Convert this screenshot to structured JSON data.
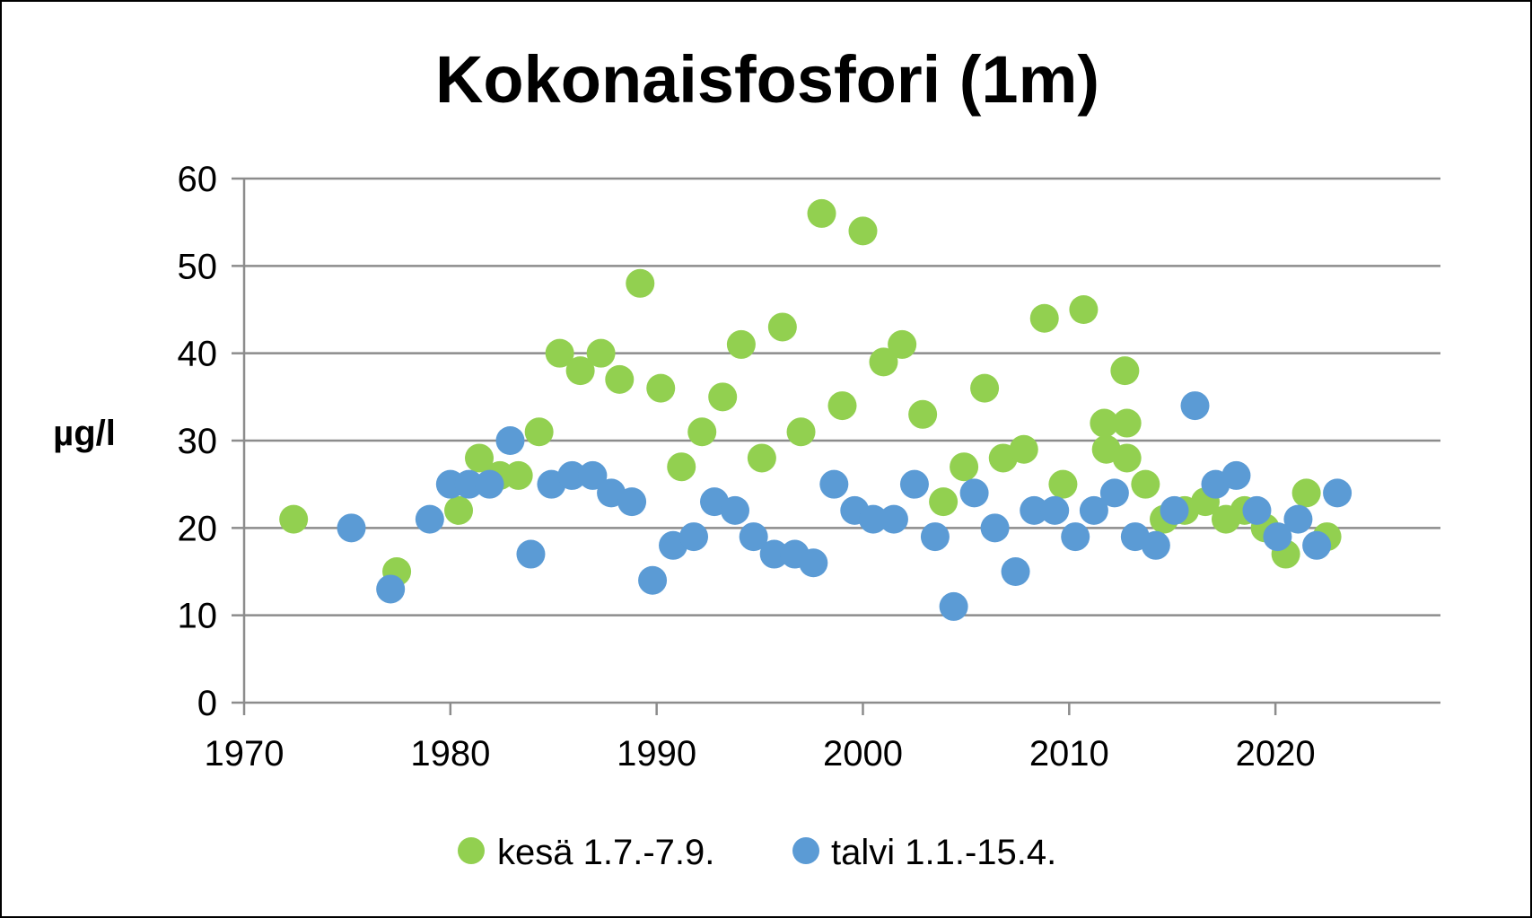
{
  "chart_data": {
    "type": "scatter",
    "title": "Kokonaisfosfori (1m)",
    "xlabel": "",
    "ylabel": "µg/l",
    "xlim": [
      1970,
      2028
    ],
    "ylim": [
      0,
      60
    ],
    "x_ticks": [
      1970,
      1980,
      1990,
      2000,
      2010,
      2020
    ],
    "y_ticks": [
      0,
      10,
      20,
      30,
      40,
      50,
      60
    ],
    "grid": true,
    "legend_position": "bottom",
    "series": [
      {
        "name": "kesä 1.7.-7.9.",
        "color": "#92D050",
        "points": [
          [
            1972.4,
            21
          ],
          [
            1977.4,
            15
          ],
          [
            1980.4,
            22
          ],
          [
            1981.4,
            28
          ],
          [
            1982.4,
            26
          ],
          [
            1983.3,
            26
          ],
          [
            1984.3,
            31
          ],
          [
            1985.3,
            40
          ],
          [
            1986.3,
            38
          ],
          [
            1987.3,
            40
          ],
          [
            1988.2,
            37
          ],
          [
            1989.2,
            48
          ],
          [
            1990.2,
            36
          ],
          [
            1991.2,
            27
          ],
          [
            1992.2,
            31
          ],
          [
            1993.2,
            35
          ],
          [
            1994.1,
            41
          ],
          [
            1995.1,
            28
          ],
          [
            1996.1,
            43
          ],
          [
            1997.0,
            31
          ],
          [
            1998.0,
            56
          ],
          [
            1999.0,
            34
          ],
          [
            2000.0,
            54
          ],
          [
            2001.0,
            39
          ],
          [
            2001.9,
            41
          ],
          [
            2002.9,
            33
          ],
          [
            2003.9,
            23
          ],
          [
            2004.9,
            27
          ],
          [
            2005.9,
            36
          ],
          [
            2006.8,
            28
          ],
          [
            2007.8,
            29
          ],
          [
            2008.8,
            44
          ],
          [
            2009.7,
            25
          ],
          [
            2010.7,
            45
          ],
          [
            2011.7,
            32
          ],
          [
            2011.8,
            29
          ],
          [
            2012.7,
            38
          ],
          [
            2012.8,
            32
          ],
          [
            2012.8,
            28
          ],
          [
            2013.7,
            25
          ],
          [
            2014.6,
            21
          ],
          [
            2015.6,
            22
          ],
          [
            2016.6,
            23
          ],
          [
            2017.6,
            21
          ],
          [
            2018.5,
            22
          ],
          [
            2019.5,
            20
          ],
          [
            2020.5,
            17
          ],
          [
            2021.5,
            24
          ],
          [
            2022.5,
            19
          ]
        ]
      },
      {
        "name": "talvi 1.1.-15.4.",
        "color": "#5B9BD5",
        "points": [
          [
            1975.2,
            20
          ],
          [
            1977.1,
            13
          ],
          [
            1979.0,
            21
          ],
          [
            1980.0,
            25
          ],
          [
            1980.9,
            25
          ],
          [
            1981.9,
            25
          ],
          [
            1982.9,
            30
          ],
          [
            1983.9,
            17
          ],
          [
            1984.9,
            25
          ],
          [
            1985.9,
            26
          ],
          [
            1986.9,
            26
          ],
          [
            1987.8,
            24
          ],
          [
            1988.8,
            23
          ],
          [
            1989.8,
            14
          ],
          [
            1990.8,
            18
          ],
          [
            1991.8,
            19
          ],
          [
            1992.8,
            23
          ],
          [
            1993.8,
            22
          ],
          [
            1994.7,
            19
          ],
          [
            1995.7,
            17
          ],
          [
            1996.7,
            17
          ],
          [
            1997.6,
            16
          ],
          [
            1998.6,
            25
          ],
          [
            1999.6,
            22
          ],
          [
            2000.5,
            21
          ],
          [
            2001.5,
            21
          ],
          [
            2002.5,
            25
          ],
          [
            2003.5,
            19
          ],
          [
            2004.4,
            11
          ],
          [
            2005.4,
            24
          ],
          [
            2006.4,
            20
          ],
          [
            2007.4,
            15
          ],
          [
            2008.3,
            22
          ],
          [
            2009.3,
            22
          ],
          [
            2010.3,
            19
          ],
          [
            2011.2,
            22
          ],
          [
            2012.2,
            24
          ],
          [
            2013.2,
            19
          ],
          [
            2014.2,
            18
          ],
          [
            2015.1,
            22
          ],
          [
            2016.1,
            34
          ],
          [
            2017.1,
            25
          ],
          [
            2018.1,
            26
          ],
          [
            2019.1,
            22
          ],
          [
            2020.1,
            19
          ],
          [
            2021.1,
            21
          ],
          [
            2022.0,
            18
          ],
          [
            2023.0,
            24
          ]
        ]
      }
    ]
  }
}
